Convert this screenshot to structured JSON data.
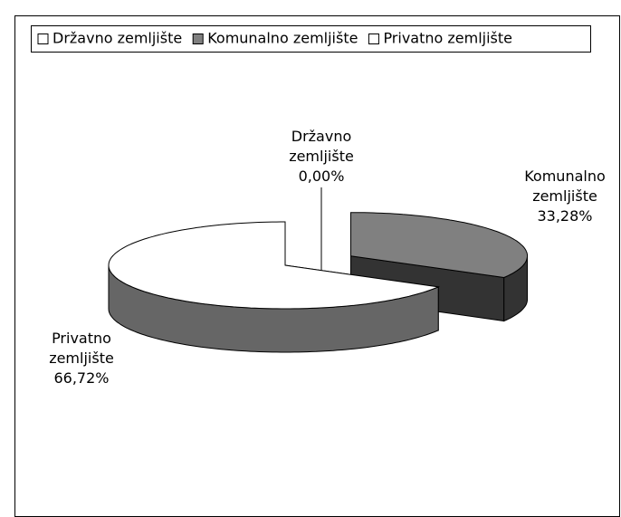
{
  "chart_data": {
    "type": "pie3d",
    "categories": [
      "Državno zemljište",
      "Komunalno zemljište",
      "Privatno zemljište"
    ],
    "values": [
      0,
      33.28,
      66.72
    ],
    "value_labels": [
      "0,00%",
      "33,28%",
      "66,72%"
    ],
    "colors": [
      "#ffffff",
      "#808080",
      "#ffffff"
    ],
    "legend": "top"
  }
}
